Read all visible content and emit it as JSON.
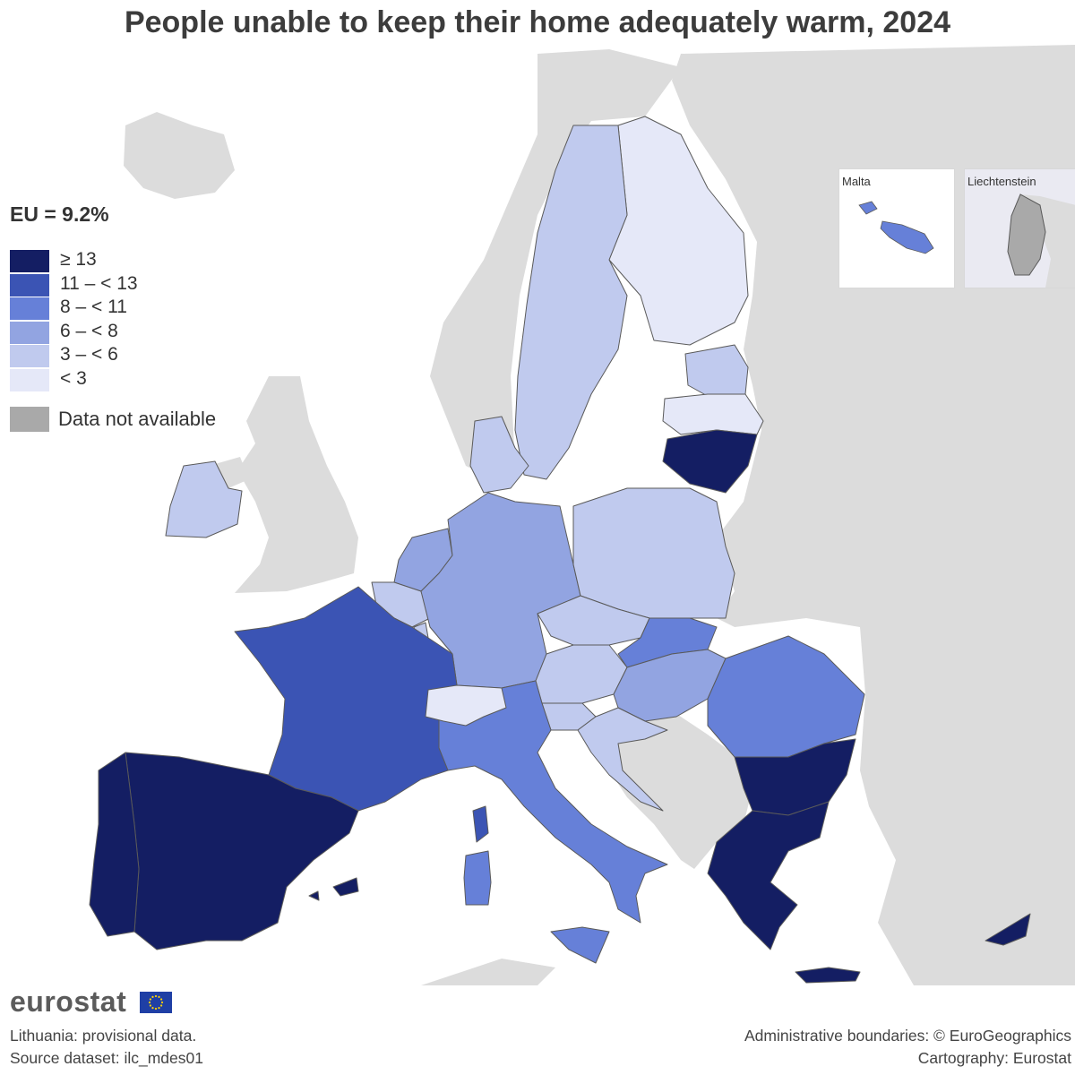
{
  "title": "People unable to keep their home adequately warm, 2024",
  "eu_average": "EU = 9.2%",
  "legend": {
    "items": [
      {
        "label": "≥ 13",
        "color": "#141e63"
      },
      {
        "label": "11 – < 13",
        "color": "#3b54b4"
      },
      {
        "label": "8 – < 11",
        "color": "#6680d8"
      },
      {
        "label": "6 – < 8",
        "color": "#92a4e1"
      },
      {
        "label": "3 – < 6",
        "color": "#c0caee"
      },
      {
        "label": "< 3",
        "color": "#e5e8f8"
      }
    ],
    "not_available": {
      "label": "Data not available",
      "color": "#a9a9a9"
    }
  },
  "insets": {
    "malta": "Malta",
    "liechtenstein": "Liechtenstein"
  },
  "map_colors": {
    "sea": "#ffffff",
    "non_eu_land": "#dcdcdc",
    "border": "#5a5a5a"
  },
  "logo": "eurostat",
  "footnotes": {
    "provisional": "Lithuania: provisional data.",
    "source": "Source dataset: ilc_mdes01",
    "boundaries": "Administrative boundaries: © EuroGeographics",
    "cartography": "Cartography: Eurostat"
  }
}
